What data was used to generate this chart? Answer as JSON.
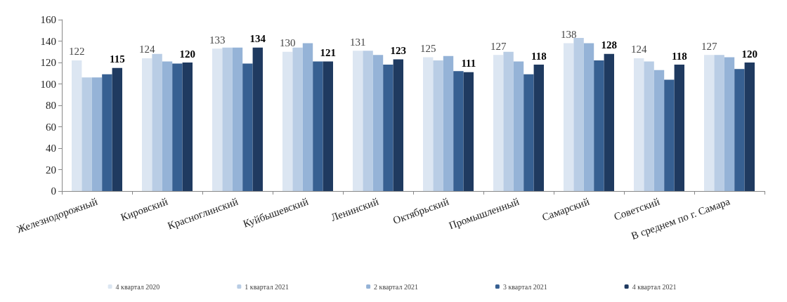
{
  "chart_data": {
    "type": "bar",
    "categories": [
      "Железнодорожный",
      "Кировский",
      "Красноглинский",
      "Куйбышевский",
      "Ленинский",
      "Октябрьский",
      "Промышленный",
      "Самарский",
      "Советский",
      "В среднем по г. Самара"
    ],
    "series": [
      {
        "name": "4 квартал 2020",
        "color": "#dce6f2",
        "values": [
          122,
          124,
          133,
          130,
          131,
          125,
          127,
          138,
          124,
          127
        ],
        "value_labels": [
          "122",
          "124",
          "133",
          "130",
          "131",
          "125",
          "127",
          "138",
          "124",
          "127"
        ]
      },
      {
        "name": "1 квартал 2021",
        "color": "#b9cde5",
        "values": [
          106,
          128,
          134,
          134,
          131,
          122,
          130,
          143,
          121,
          127
        ]
      },
      {
        "name": "2 квартал 2021",
        "color": "#95b3d7",
        "values": [
          106,
          121,
          134,
          138,
          127,
          126,
          121,
          138,
          113,
          125
        ]
      },
      {
        "name": "3 квартал 2021",
        "color": "#376092",
        "values": [
          109,
          119,
          119,
          121,
          118,
          112,
          109,
          122,
          104,
          114
        ]
      },
      {
        "name": "4 квартал 2021",
        "color": "#1f3a60",
        "values": [
          115,
          120,
          134,
          121,
          123,
          111,
          118,
          128,
          118,
          120
        ],
        "value_labels": [
          "115",
          "120",
          "134",
          "121",
          "123",
          "111",
          "118",
          "128",
          "118",
          "120"
        ]
      }
    ],
    "ylim": [
      0,
      160
    ],
    "yticks": [
      0,
      20,
      40,
      60,
      80,
      100,
      120,
      140,
      160
    ],
    "grid": false,
    "legend": "bottom"
  }
}
